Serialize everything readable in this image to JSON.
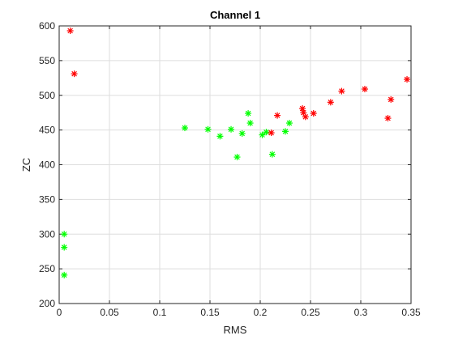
{
  "chart_data": {
    "type": "scatter",
    "title": "Channel 1",
    "xlabel": "RMS",
    "ylabel": "ZC",
    "xlim": [
      0,
      0.35
    ],
    "ylim": [
      200,
      600
    ],
    "grid": true,
    "xticks": [
      {
        "value": 0,
        "label": "0"
      },
      {
        "value": 0.05,
        "label": "0.05"
      },
      {
        "value": 0.1,
        "label": "0.1"
      },
      {
        "value": 0.15,
        "label": "0.15"
      },
      {
        "value": 0.2,
        "label": "0.2"
      },
      {
        "value": 0.25,
        "label": "0.25"
      },
      {
        "value": 0.3,
        "label": "0.3"
      },
      {
        "value": 0.35,
        "label": "0.35"
      }
    ],
    "yticks": [
      {
        "value": 200,
        "label": "200"
      },
      {
        "value": 250,
        "label": "250"
      },
      {
        "value": 300,
        "label": "300"
      },
      {
        "value": 350,
        "label": "350"
      },
      {
        "value": 400,
        "label": "400"
      },
      {
        "value": 450,
        "label": "450"
      },
      {
        "value": 500,
        "label": "500"
      },
      {
        "value": 550,
        "label": "550"
      },
      {
        "value": 600,
        "label": "600"
      }
    ],
    "series": [
      {
        "color": "#00ff00",
        "marker": "asterisk",
        "points": [
          {
            "x": 0.005,
            "y": 300
          },
          {
            "x": 0.005,
            "y": 281
          },
          {
            "x": 0.005,
            "y": 241
          },
          {
            "x": 0.125,
            "y": 453
          },
          {
            "x": 0.148,
            "y": 451
          },
          {
            "x": 0.16,
            "y": 441
          },
          {
            "x": 0.171,
            "y": 451
          },
          {
            "x": 0.177,
            "y": 411
          },
          {
            "x": 0.182,
            "y": 445
          },
          {
            "x": 0.188,
            "y": 474
          },
          {
            "x": 0.19,
            "y": 460
          },
          {
            "x": 0.202,
            "y": 443
          },
          {
            "x": 0.206,
            "y": 447
          },
          {
            "x": 0.212,
            "y": 415
          },
          {
            "x": 0.225,
            "y": 448
          },
          {
            "x": 0.229,
            "y": 460
          }
        ]
      },
      {
        "color": "#ff0000",
        "marker": "asterisk",
        "points": [
          {
            "x": 0.011,
            "y": 593
          },
          {
            "x": 0.015,
            "y": 531
          },
          {
            "x": 0.211,
            "y": 446
          },
          {
            "x": 0.217,
            "y": 471
          },
          {
            "x": 0.242,
            "y": 481
          },
          {
            "x": 0.243,
            "y": 475
          },
          {
            "x": 0.245,
            "y": 469
          },
          {
            "x": 0.253,
            "y": 474
          },
          {
            "x": 0.27,
            "y": 490
          },
          {
            "x": 0.281,
            "y": 506
          },
          {
            "x": 0.304,
            "y": 509
          },
          {
            "x": 0.327,
            "y": 467
          },
          {
            "x": 0.33,
            "y": 494
          },
          {
            "x": 0.346,
            "y": 523
          }
        ]
      }
    ]
  }
}
